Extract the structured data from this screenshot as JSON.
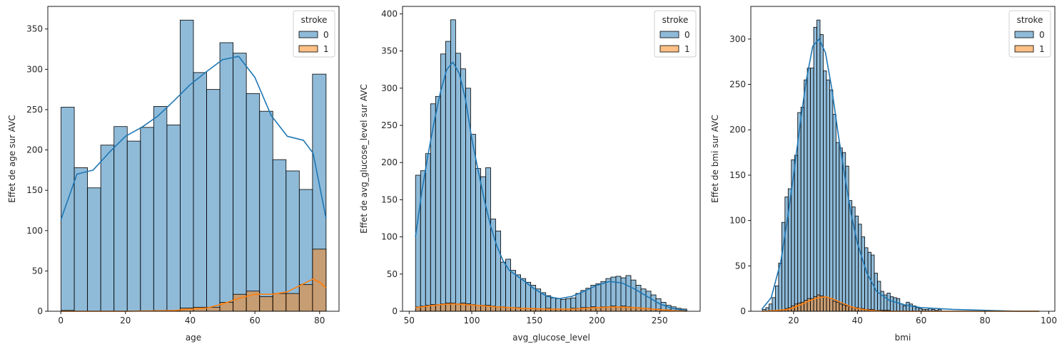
{
  "legend": {
    "title": "stroke",
    "entries": [
      {
        "label": "0",
        "color": "#1f77b4"
      },
      {
        "label": "1",
        "color": "#ff7f0e"
      }
    ]
  },
  "chart_data": [
    {
      "type": "bar",
      "xlabel": "age",
      "ylabel": "Effet de age sur AVC",
      "xlim": [
        -4,
        86
      ],
      "ylim": [
        0,
        378
      ],
      "xticks": [
        0,
        20,
        40,
        60,
        80
      ],
      "yticks": [
        0,
        50,
        100,
        150,
        200,
        250,
        300,
        350
      ],
      "legend_position": "top-right",
      "bin_edges": [
        0.08,
        4.18,
        8.27,
        12.36,
        16.45,
        20.54,
        24.63,
        28.72,
        32.81,
        36.9,
        41.0,
        45.09,
        49.18,
        53.27,
        57.36,
        61.45,
        65.54,
        69.63,
        73.72,
        77.81,
        82.0
      ],
      "series": [
        {
          "name": "0",
          "values": [
            253,
            178,
            153,
            206,
            229,
            211,
            228,
            254,
            231,
            361,
            296,
            275,
            333,
            320,
            270,
            248,
            188,
            174,
            151,
            294
          ]
        },
        {
          "name": "1",
          "values": [
            1,
            0,
            0,
            0,
            0,
            0,
            0,
            1,
            1,
            4,
            5,
            5,
            11,
            21,
            25,
            18,
            22,
            22,
            33,
            77
          ]
        }
      ],
      "kde": [
        {
          "name": "0",
          "x": [
            0,
            5,
            10,
            15,
            20,
            25,
            30,
            35,
            40,
            45,
            50,
            55,
            60,
            65,
            70,
            75,
            78,
            82
          ],
          "y": [
            113,
            170,
            175,
            197,
            217,
            228,
            242,
            261,
            281,
            297,
            312,
            316,
            290,
            243,
            217,
            212,
            196,
            115
          ]
        },
        {
          "name": "1",
          "x": [
            0,
            20,
            35,
            45,
            50,
            55,
            60,
            65,
            70,
            75,
            78,
            80,
            82
          ],
          "y": [
            0,
            0,
            1,
            4,
            9,
            16,
            21,
            21,
            24,
            34,
            40,
            36,
            29
          ]
        }
      ]
    },
    {
      "type": "bar",
      "xlabel": "avg_glucose_level",
      "ylabel": "Effet de avg_glucose_level sur AVC",
      "xlim": [
        44.7,
        282.4
      ],
      "ylim": [
        0,
        410
      ],
      "xticks": [
        50,
        100,
        150,
        200,
        250
      ],
      "yticks": [
        0,
        50,
        100,
        150,
        200,
        250,
        300,
        350,
        400
      ],
      "legend_position": "top-right",
      "bin_edges": [
        55.1,
        59.1,
        63.1,
        67.1,
        71.1,
        75.1,
        79.1,
        83.1,
        87.1,
        91.1,
        95.1,
        99.1,
        103.1,
        107.1,
        111.1,
        115.1,
        119.1,
        123.1,
        127.1,
        131.1,
        135.1,
        139.1,
        143.1,
        147.1,
        151.1,
        155.1,
        159.1,
        163.1,
        167.1,
        171.1,
        175.1,
        179.1,
        183.1,
        187.1,
        191.1,
        195.1,
        199.1,
        203.1,
        207.1,
        211.1,
        215.1,
        219.1,
        223.1,
        227.1,
        231.1,
        235.1,
        239.1,
        243.1,
        247.1,
        251.1,
        255.1,
        259.1,
        263.1,
        267.1,
        271.7
      ],
      "series": [
        {
          "name": "0",
          "values": [
            183,
            189,
            212,
            279,
            289,
            346,
            363,
            392,
            347,
            326,
            300,
            238,
            192,
            181,
            193,
            124,
            108,
            66,
            70,
            55,
            49,
            44,
            39,
            35,
            30,
            25,
            21,
            18,
            17,
            16,
            17,
            18,
            24,
            28,
            31,
            35,
            37,
            40,
            44,
            46,
            47,
            45,
            48,
            42,
            35,
            30,
            27,
            22,
            17,
            12,
            8,
            6,
            4,
            3
          ]
        },
        {
          "name": "1",
          "values": [
            6,
            7,
            8,
            9,
            9,
            10,
            11,
            11,
            10,
            11,
            10,
            9,
            8,
            8,
            8,
            7,
            6,
            6,
            5,
            5,
            5,
            4,
            4,
            4,
            3,
            3,
            4,
            3,
            3,
            3,
            3,
            4,
            4,
            5,
            5,
            6,
            5,
            6,
            6,
            7,
            6,
            7,
            6,
            5,
            5,
            4,
            4,
            3,
            3,
            2,
            2,
            1,
            1,
            1
          ]
        }
      ],
      "kde": [
        {
          "name": "0",
          "x": [
            55,
            60,
            65,
            70,
            75,
            80,
            85,
            90,
            95,
            100,
            105,
            110,
            115,
            120,
            125,
            130,
            140,
            150,
            160,
            170,
            180,
            190,
            200,
            210,
            220,
            230,
            240,
            250,
            260,
            271
          ],
          "y": [
            100,
            160,
            210,
            255,
            295,
            325,
            335,
            320,
            285,
            232,
            190,
            150,
            115,
            88,
            68,
            55,
            43,
            30,
            20,
            17,
            20,
            27,
            35,
            40,
            38,
            30,
            20,
            10,
            4,
            1
          ]
        },
        {
          "name": "1",
          "x": [
            55,
            65,
            75,
            85,
            95,
            105,
            120,
            140,
            160,
            180,
            200,
            215,
            230,
            245,
            260,
            271
          ],
          "y": [
            5,
            7,
            9,
            10,
            9,
            8,
            6,
            4,
            3,
            3,
            5,
            6,
            5,
            3,
            1,
            0
          ]
        }
      ]
    },
    {
      "type": "bar",
      "xlabel": "bmi",
      "ylabel": "Effet de bmi sur AVC",
      "xlim": [
        6.6,
        101.9
      ],
      "ylim": [
        0,
        336
      ],
      "xticks": [
        20,
        40,
        60,
        80,
        100
      ],
      "yticks": [
        0,
        50,
        100,
        150,
        200,
        250,
        300
      ],
      "legend_position": "top-right",
      "bin_edges": [
        10.3,
        11.3,
        12.3,
        13.3,
        14.3,
        15.3,
        16.3,
        17.3,
        18.3,
        19.3,
        20.3,
        21.3,
        22.3,
        23.3,
        24.3,
        25.3,
        26.3,
        27.3,
        28.3,
        29.3,
        30.3,
        31.3,
        32.3,
        33.3,
        34.3,
        35.3,
        36.3,
        37.3,
        38.3,
        39.3,
        40.3,
        41.3,
        42.3,
        43.3,
        44.3,
        45.3,
        46.3,
        47.3,
        48.3,
        49.3,
        50.3,
        51.3,
        52.3,
        53.3,
        54.3,
        55.3,
        56.3,
        57.3,
        58.3,
        59.3,
        60.3,
        61.3,
        62.3,
        63.3,
        64.3,
        65.3,
        66.3
      ],
      "series": [
        {
          "name": "0",
          "values": [
            2,
            4,
            8,
            15,
            28,
            53,
            98,
            126,
            135,
            167,
            172,
            219,
            225,
            255,
            268,
            268,
            313,
            321,
            305,
            265,
            255,
            244,
            217,
            186,
            180,
            175,
            160,
            122,
            115,
            105,
            96,
            82,
            70,
            65,
            62,
            42,
            33,
            22,
            18,
            20,
            16,
            15,
            14,
            8,
            6,
            10,
            8,
            6,
            4,
            3,
            2,
            2,
            3,
            2,
            1,
            2
          ]
        },
        {
          "name": "1",
          "values": [
            0,
            0,
            0,
            0,
            0,
            1,
            2,
            3,
            4,
            6,
            8,
            9,
            10,
            12,
            14,
            14,
            16,
            18,
            17,
            16,
            15,
            14,
            11,
            10,
            8,
            7,
            6,
            5,
            4,
            4,
            3,
            3,
            2,
            2,
            2,
            1,
            1,
            1,
            1,
            1,
            0,
            0,
            0,
            0,
            0,
            0,
            0,
            0,
            0,
            0,
            0,
            0,
            0,
            0,
            0,
            0
          ]
        }
      ],
      "kde": [
        {
          "name": "0",
          "x": [
            10,
            13,
            16,
            18,
            20,
            22,
            24,
            26,
            28,
            30,
            32,
            34,
            36,
            38,
            40,
            43,
            46,
            50,
            55,
            60,
            65,
            70,
            80,
            90,
            97
          ],
          "y": [
            2,
            15,
            55,
            100,
            150,
            205,
            255,
            292,
            300,
            285,
            245,
            195,
            150,
            108,
            75,
            42,
            22,
            12,
            7,
            4,
            3,
            2,
            1,
            0,
            0
          ]
        },
        {
          "name": "1",
          "x": [
            10,
            15,
            18,
            20,
            22,
            24,
            26,
            28,
            30,
            32,
            34,
            36,
            38,
            40,
            44,
            48,
            55,
            97
          ],
          "y": [
            0,
            1,
            2,
            4,
            7,
            10,
            13,
            15,
            16,
            14,
            11,
            8,
            5,
            3,
            1,
            0,
            0,
            0
          ]
        }
      ]
    }
  ]
}
